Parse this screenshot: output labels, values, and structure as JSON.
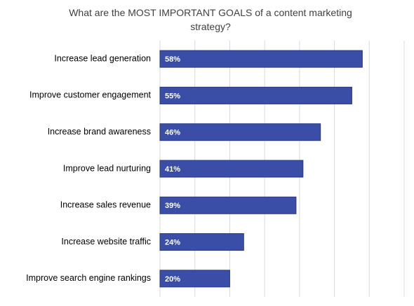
{
  "chart_data": {
    "type": "bar",
    "orientation": "horizontal",
    "title": "What are the MOST IMPORTANT GOALS of a content marketing strategy?",
    "categories": [
      "Increase lead generation",
      "Improve customer engagement",
      "Increase brand awareness",
      "Improve lead nurturing",
      "Increase sales revenue",
      "Increase website traffic",
      "Improve search engine rankings"
    ],
    "values": [
      58,
      55,
      46,
      41,
      39,
      24,
      20
    ],
    "value_labels": [
      "58%",
      "55%",
      "46%",
      "41%",
      "39%",
      "24%",
      "20%"
    ],
    "color": "#3a4ea8",
    "xlim": [
      0,
      70
    ],
    "xticks": [
      0,
      10,
      20,
      30,
      40,
      50,
      60,
      70
    ],
    "grid": true
  }
}
